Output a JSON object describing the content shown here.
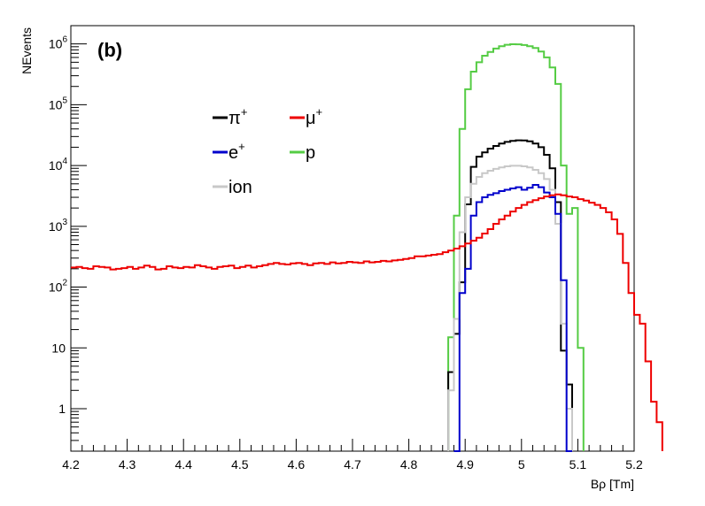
{
  "chart_data": {
    "type": "line",
    "panel_label": "(b)",
    "xlabel": "Bρ [Tm]",
    "ylabel": "NEvents",
    "xlim": [
      4.2,
      5.2
    ],
    "ylim": [
      0.2,
      2000000
    ],
    "yscale": "log",
    "bin_width": 0.01,
    "x_ticks": [
      "4.2",
      "4.3",
      "4.4",
      "4.5",
      "4.6",
      "4.7",
      "4.8",
      "4.9",
      "5",
      "5.1",
      "5.2"
    ],
    "y_ticks": [
      {
        "value": 1,
        "label": "1"
      },
      {
        "value": 10,
        "label": "10"
      },
      {
        "value": 100,
        "label": "10",
        "exp": "2"
      },
      {
        "value": 1000,
        "label": "10",
        "exp": "3"
      },
      {
        "value": 10000,
        "label": "10",
        "exp": "4"
      },
      {
        "value": 100000,
        "label": "10",
        "exp": "5"
      },
      {
        "value": 1000000,
        "label": "10",
        "exp": "6"
      }
    ],
    "grid": false,
    "legend_position": "upper-left-center",
    "series": [
      {
        "name": "π",
        "sup": "+",
        "color": "#000000",
        "x_start": 4.87,
        "values": [
          4,
          17,
          120,
          2300,
          9500,
          14000,
          16500,
          19000,
          21000,
          23000,
          24500,
          25500,
          26000,
          25800,
          25000,
          23000,
          20000,
          15000,
          9000,
          2500,
          9,
          2.5
        ]
      },
      {
        "name": "μ",
        "sup": "+",
        "color": "#ee0000",
        "x_start": 4.2,
        "values": [
          210,
          215,
          205,
          200,
          220,
          215,
          210,
          195,
          200,
          205,
          215,
          200,
          210,
          225,
          215,
          195,
          200,
          220,
          210,
          205,
          215,
          210,
          230,
          220,
          210,
          200,
          215,
          220,
          225,
          205,
          215,
          225,
          210,
          220,
          230,
          240,
          250,
          240,
          235,
          245,
          250,
          240,
          230,
          245,
          250,
          240,
          255,
          245,
          250,
          260,
          255,
          250,
          265,
          255,
          260,
          270,
          265,
          275,
          280,
          290,
          300,
          320,
          320,
          330,
          340,
          350,
          375,
          400,
          430,
          470,
          520,
          580,
          650,
          760,
          900,
          1100,
          1300,
          1500,
          1750,
          2000,
          2250,
          2500,
          2700,
          2900,
          3100,
          3250,
          3350,
          3250,
          3100,
          3000,
          2800,
          2650,
          2450,
          2250,
          2000,
          1700,
          1300,
          750,
          250,
          80,
          35,
          25,
          6,
          1.3,
          0.6
        ]
      },
      {
        "name": "e",
        "sup": "+",
        "color": "#0000cc",
        "x_start": 4.88,
        "values": [
          0,
          80,
          200,
          1500,
          2500,
          3000,
          3300,
          3500,
          3800,
          4000,
          4200,
          4400,
          4000,
          4300,
          4800,
          4400,
          3600,
          3000,
          1600,
          130,
          0
        ]
      },
      {
        "name": "p",
        "sup": "",
        "color": "#55cc44",
        "x_start": 4.87,
        "values": [
          15,
          1500,
          40000,
          180000,
          350000,
          500000,
          640000,
          740000,
          840000,
          920000,
          970000,
          990000,
          985000,
          960000,
          920000,
          860000,
          750000,
          600000,
          410000,
          220000,
          10000,
          1600,
          2000,
          10
        ]
      },
      {
        "name": "ion",
        "sup": "",
        "color": "#c8c8c8",
        "x_start": 4.87,
        "values": [
          2,
          30,
          800,
          3000,
          5000,
          6500,
          7500,
          8200,
          8800,
          9300,
          9700,
          9900,
          9900,
          9700,
          9300,
          8500,
          7500,
          6000,
          4000,
          1100,
          25,
          1
        ]
      }
    ]
  }
}
